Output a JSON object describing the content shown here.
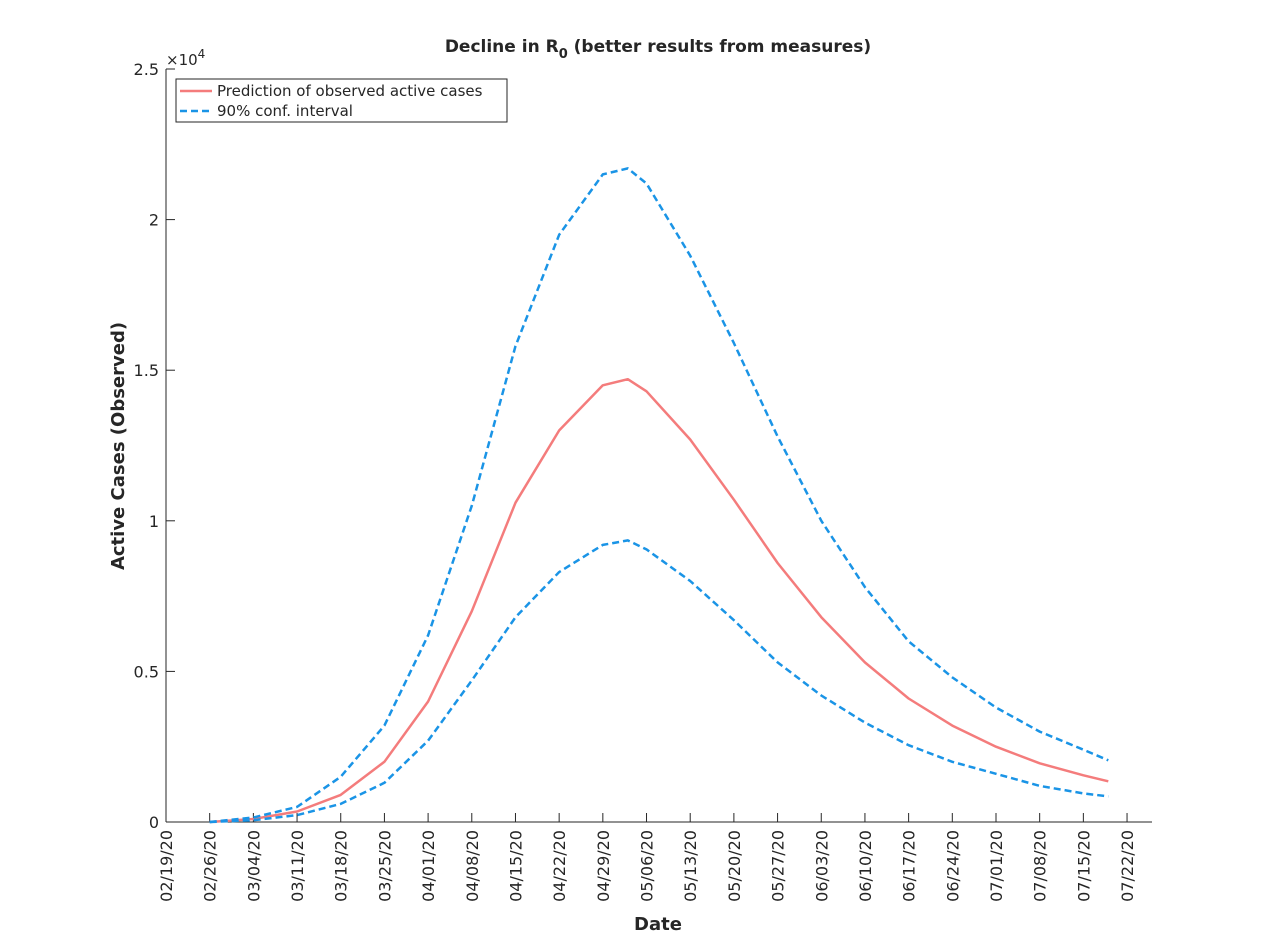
{
  "chart_data": {
    "type": "line",
    "title_main": "Decline in R",
    "title_sub": "0",
    "title_rest": " (better results from measures)",
    "xlabel": "Date",
    "ylabel": "Active Cases (Observed)",
    "exponent_base": "×10",
    "exponent_power": "4",
    "ylim": [
      0,
      25000
    ],
    "xlim": [
      "02/19/20",
      "07/26/20"
    ],
    "xticks": [
      "02/19/20",
      "02/26/20",
      "03/04/20",
      "03/11/20",
      "03/18/20",
      "03/25/20",
      "04/01/20",
      "04/08/20",
      "04/15/20",
      "04/22/20",
      "04/29/20",
      "05/06/20",
      "05/13/20",
      "05/20/20",
      "05/27/20",
      "06/03/20",
      "06/10/20",
      "06/17/20",
      "06/24/20",
      "07/01/20",
      "07/08/20",
      "07/15/20",
      "07/22/20"
    ],
    "yticks": [
      0,
      5000,
      10000,
      15000,
      20000,
      25000
    ],
    "ytick_labels": [
      "0",
      "0.5",
      "1",
      "1.5",
      "2",
      "2.5"
    ],
    "legend": {
      "placement": "top-left"
    },
    "x": [
      "02/26/20",
      "03/04/20",
      "03/11/20",
      "03/18/20",
      "03/25/20",
      "04/01/20",
      "04/08/20",
      "04/15/20",
      "04/22/20",
      "04/29/20",
      "05/03/20",
      "05/06/20",
      "05/13/20",
      "05/20/20",
      "05/27/20",
      "06/03/20",
      "06/10/20",
      "06/17/20",
      "06/24/20",
      "07/01/20",
      "07/08/20",
      "07/15/20",
      "07/19/20"
    ],
    "series": [
      {
        "name": "Prediction of observed active cases",
        "color": "#f47c7c",
        "dash": "solid",
        "values": [
          0,
          100,
          350,
          900,
          2000,
          4000,
          7000,
          10600,
          13000,
          14500,
          14700,
          14300,
          12700,
          10700,
          8600,
          6800,
          5300,
          4100,
          3200,
          2500,
          1950,
          1550,
          1350
        ]
      },
      {
        "name": "90% conf. interval",
        "color": "#1a94e6",
        "dash": "dashed",
        "values": [
          0,
          150,
          500,
          1500,
          3200,
          6200,
          10500,
          15800,
          19500,
          21500,
          21700,
          21200,
          18800,
          15900,
          12800,
          10000,
          7800,
          6000,
          4800,
          3800,
          3000,
          2400,
          2050
        ]
      },
      {
        "name": "",
        "color": "#1a94e6",
        "dash": "dashed",
        "legend": false,
        "values": [
          0,
          60,
          230,
          600,
          1300,
          2700,
          4700,
          6800,
          8300,
          9200,
          9350,
          9050,
          8000,
          6700,
          5300,
          4200,
          3300,
          2550,
          2000,
          1600,
          1200,
          950,
          850
        ]
      }
    ]
  }
}
